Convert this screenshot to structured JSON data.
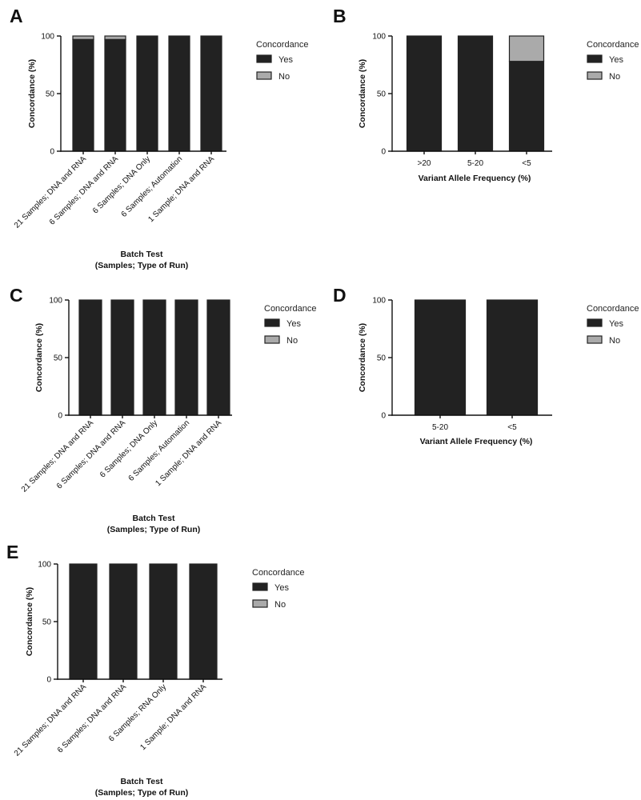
{
  "colors": {
    "yes": "#222222",
    "no": "#aaaaaa",
    "axis": "#111111"
  },
  "chart_data": [
    {
      "panel": "A",
      "type": "bar",
      "stacked": true,
      "ylabel": "Concordance (%)",
      "xlabel": [
        "Batch Test",
        "(Samples; Type of Run)"
      ],
      "ylim": [
        0,
        100
      ],
      "yticks": [
        0,
        50,
        100
      ],
      "categories": [
        "21 Samples; DNA and RNA",
        "6 Samples; DNA and RNA",
        "6 Samples; DNA Only",
        "6 Samples; Automation",
        "1 Sample; DNA and RNA"
      ],
      "rotated_categories": true,
      "series": [
        {
          "name": "Yes",
          "values": [
            97,
            97,
            100,
            100,
            100
          ]
        },
        {
          "name": "No",
          "values": [
            3,
            3,
            0,
            0,
            0
          ]
        }
      ],
      "legend": {
        "title": "Concordance",
        "entries": [
          "Yes",
          "No"
        ],
        "position": "right"
      }
    },
    {
      "panel": "B",
      "type": "bar",
      "stacked": true,
      "ylabel": "Concordance (%)",
      "xlabel": [
        "Variant Allele Frequency (%)"
      ],
      "ylim": [
        0,
        100
      ],
      "yticks": [
        0,
        50,
        100
      ],
      "categories": [
        ">20",
        "5-20",
        "<5"
      ],
      "rotated_categories": false,
      "series": [
        {
          "name": "Yes",
          "values": [
            100,
            100,
            78
          ]
        },
        {
          "name": "No",
          "values": [
            0,
            0,
            22
          ]
        }
      ],
      "legend": {
        "title": "Concordance",
        "entries": [
          "Yes",
          "No"
        ],
        "position": "right"
      }
    },
    {
      "panel": "C",
      "type": "bar",
      "stacked": true,
      "ylabel": "Concordance (%)",
      "xlabel": [
        "Batch Test",
        "(Samples; Type of Run)"
      ],
      "ylim": [
        0,
        100
      ],
      "yticks": [
        0,
        50,
        100
      ],
      "categories": [
        "21 Samples; DNA and RNA",
        "6 Samples; DNA and RNA",
        "6 Samples; DNA Only",
        "6 Samples; Automation",
        "1 Sample; DNA and RNA"
      ],
      "rotated_categories": true,
      "series": [
        {
          "name": "Yes",
          "values": [
            100,
            100,
            100,
            100,
            100
          ]
        },
        {
          "name": "No",
          "values": [
            0,
            0,
            0,
            0,
            0
          ]
        }
      ],
      "legend": {
        "title": "Concordance",
        "entries": [
          "Yes",
          "No"
        ],
        "position": "right"
      }
    },
    {
      "panel": "D",
      "type": "bar",
      "stacked": true,
      "ylabel": "Concordance (%)",
      "xlabel": [
        "Variant Allele Frequency (%)"
      ],
      "ylim": [
        0,
        100
      ],
      "yticks": [
        0,
        50,
        100
      ],
      "categories": [
        "5-20",
        "<5"
      ],
      "rotated_categories": false,
      "series": [
        {
          "name": "Yes",
          "values": [
            100,
            100
          ]
        },
        {
          "name": "No",
          "values": [
            0,
            0
          ]
        }
      ],
      "legend": {
        "title": "Concordance",
        "entries": [
          "Yes",
          "No"
        ],
        "position": "right"
      }
    },
    {
      "panel": "E",
      "type": "bar",
      "stacked": true,
      "ylabel": "Concordance (%)",
      "xlabel": [
        "Batch Test",
        "(Samples; Type of Run)"
      ],
      "ylim": [
        0,
        100
      ],
      "yticks": [
        0,
        50,
        100
      ],
      "categories": [
        "21 Samples; DNA and RNA",
        "6 Samples; DNA and RNA",
        "6 Samples; RNA Only",
        "1 Sample; DNA and RNA"
      ],
      "rotated_categories": true,
      "series": [
        {
          "name": "Yes",
          "values": [
            100,
            100,
            100,
            100
          ]
        },
        {
          "name": "No",
          "values": [
            0,
            0,
            0,
            0
          ]
        }
      ],
      "legend": {
        "title": "Concordance",
        "entries": [
          "Yes",
          "No"
        ],
        "position": "right"
      }
    }
  ]
}
